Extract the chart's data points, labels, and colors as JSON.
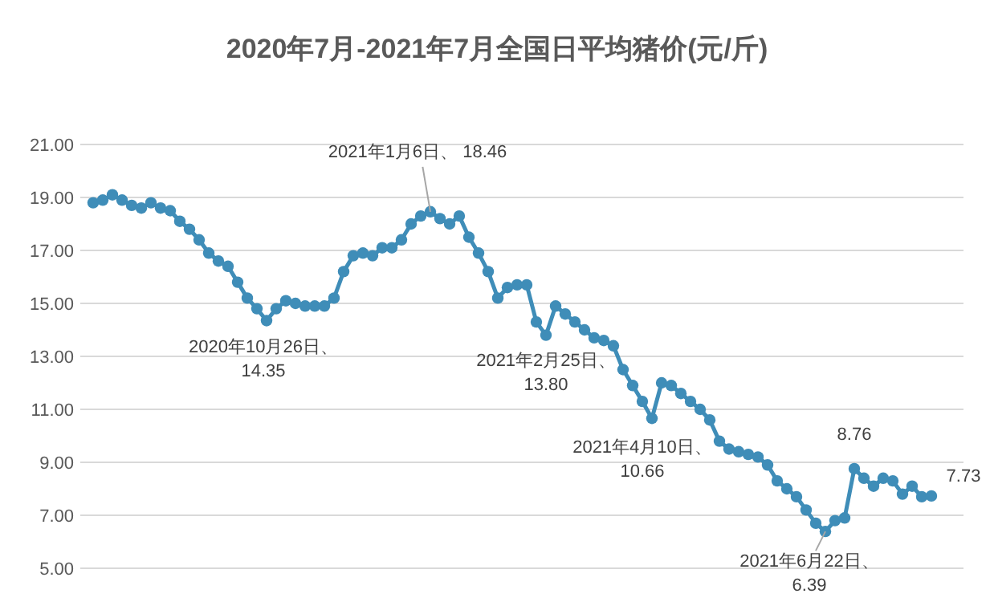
{
  "chart_data": {
    "type": "line",
    "title": "2020年7月-2021年7月全国日平均猪价(元/斤)",
    "categories": [
      null,
      null,
      null,
      null,
      null,
      null,
      null,
      null,
      null,
      null,
      null,
      null,
      null,
      null,
      null,
      null,
      null,
      null,
      null,
      null,
      null,
      null,
      null,
      null,
      null,
      null,
      null,
      null,
      null,
      null,
      null,
      null,
      null,
      null,
      null,
      null,
      null,
      null,
      null,
      null,
      null,
      null,
      null,
      null,
      null,
      null,
      null,
      null,
      null,
      null,
      null,
      null,
      null,
      null,
      null,
      null,
      null,
      null,
      null,
      null,
      null,
      null,
      null,
      null,
      null,
      null,
      null,
      null,
      null,
      null,
      null,
      null,
      null,
      null,
      null,
      null,
      null,
      null,
      null,
      null,
      null,
      null,
      null,
      null,
      null,
      null,
      null,
      null
    ],
    "series": [
      {
        "color": "#3f8db8",
        "values": [
          18.8,
          18.9,
          19.1,
          18.9,
          18.7,
          18.6,
          18.8,
          18.6,
          18.5,
          18.1,
          17.8,
          17.4,
          16.9,
          16.6,
          16.4,
          15.8,
          15.2,
          14.8,
          14.35,
          14.8,
          15.1,
          15.0,
          14.9,
          14.9,
          14.9,
          15.2,
          16.2,
          16.8,
          16.9,
          16.8,
          17.1,
          17.1,
          17.4,
          18.0,
          18.3,
          18.46,
          18.2,
          18.0,
          18.3,
          17.5,
          16.9,
          16.2,
          15.2,
          15.6,
          15.7,
          15.7,
          14.3,
          13.8,
          14.9,
          14.6,
          14.3,
          14.0,
          13.7,
          13.6,
          13.4,
          12.5,
          11.9,
          11.3,
          10.66,
          12.0,
          11.9,
          11.6,
          11.3,
          11.0,
          10.6,
          9.8,
          9.5,
          9.4,
          9.3,
          9.2,
          8.9,
          8.3,
          8.0,
          7.7,
          7.2,
          6.7,
          6.39,
          6.8,
          6.9,
          8.76,
          8.4,
          8.1,
          8.4,
          8.3,
          7.8,
          8.1,
          7.7,
          7.73
        ]
      }
    ],
    "ylim": [
      5,
      21
    ],
    "yticks": [
      {
        "value": 5,
        "label": "5.00"
      },
      {
        "value": 7,
        "label": "7.00"
      },
      {
        "value": 9,
        "label": "9.00"
      },
      {
        "value": 11,
        "label": "11.00"
      },
      {
        "value": 13,
        "label": "13.00"
      },
      {
        "value": 15,
        "label": "15.00"
      },
      {
        "value": 17,
        "label": "17.00"
      },
      {
        "value": 19,
        "label": "19.00"
      },
      {
        "value": 21,
        "label": "21.00"
      }
    ],
    "grid": "y",
    "marker": "circle",
    "annotations": [
      {
        "text": "2021年1月6日、 18.46",
        "y": 18.46
      },
      {
        "text": "2020年10月26日、\n14.35",
        "y": 14.35
      },
      "2021年2月25日、\n13.80",
      "2021年4月10日、\n10.66",
      {
        "text": "2021年6月22日、\n6.39",
        "y": 6.39
      },
      {
        "text": "8.76",
        "y": 8.76
      },
      "7.73"
    ]
  }
}
